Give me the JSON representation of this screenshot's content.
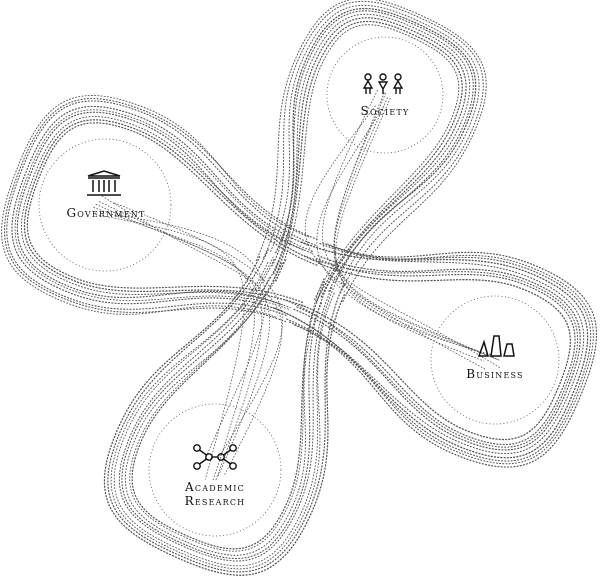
{
  "diagram": {
    "nodes": [
      {
        "id": "society",
        "lines": [
          "Society"
        ],
        "icon": "people-icon"
      },
      {
        "id": "government",
        "lines": [
          "Government"
        ],
        "icon": "government-building-icon"
      },
      {
        "id": "business",
        "lines": [
          "Business"
        ],
        "icon": "business-bars-icon"
      },
      {
        "id": "academic",
        "lines": [
          "Academic",
          "Research"
        ],
        "icon": "network-molecule-icon"
      }
    ],
    "colors": {
      "line": "#555555",
      "text": "#111111",
      "background": "#ffffff"
    }
  }
}
